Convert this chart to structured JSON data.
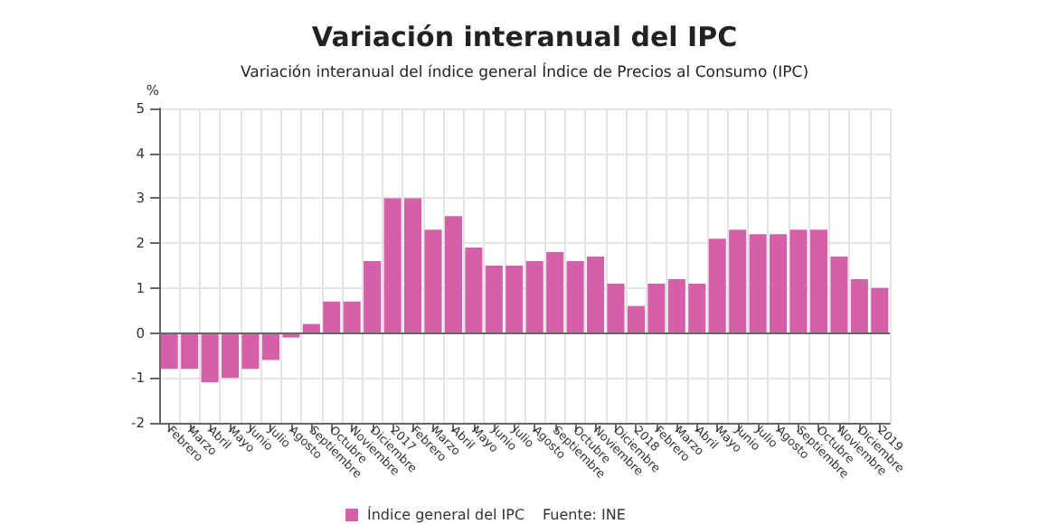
{
  "chart_data": {
    "type": "bar",
    "title": "Variación interanual del IPC",
    "subtitle": "Variación interanual del índice general Índice de Precios al Consumo (IPC)",
    "ylabel": "%",
    "categories": [
      "Febrero",
      "Marzo",
      "Abril",
      "Mayo",
      "Junio",
      "Julio",
      "Agosto",
      "Septiembre",
      "Octubre",
      "Noviembre",
      "Diciembre",
      "2017",
      "Febrero",
      "Marzo",
      "Abril",
      "Mayo",
      "Junio",
      "Julio",
      "Agosto",
      "Septiembre",
      "Octubre",
      "Noviembre",
      "Diciembre",
      "2018",
      "Febrero",
      "Marzo",
      "Abril",
      "Mayo",
      "Junio",
      "Julio",
      "Agosto",
      "Septiembre",
      "Octubre",
      "Noviembre",
      "Diciembre",
      "2019"
    ],
    "series": [
      {
        "name": "Índice general del IPC",
        "color": "#d65fa9",
        "values": [
          -0.8,
          -0.8,
          -1.1,
          -1.0,
          -0.8,
          -0.6,
          -0.1,
          0.2,
          0.7,
          0.7,
          1.6,
          3.0,
          3.0,
          2.3,
          2.6,
          1.9,
          1.5,
          1.5,
          1.6,
          1.8,
          1.6,
          1.7,
          1.1,
          0.6,
          1.1,
          1.2,
          1.1,
          2.1,
          2.3,
          2.2,
          2.2,
          2.3,
          2.3,
          1.7,
          1.2,
          1.0
        ]
      }
    ],
    "ylim": [
      -2,
      5
    ],
    "yticks": [
      -2,
      -1,
      0,
      1,
      2,
      3,
      4,
      5
    ],
    "grid": true,
    "legend": "bottom",
    "annotations": [
      "Fuente: INE"
    ]
  }
}
